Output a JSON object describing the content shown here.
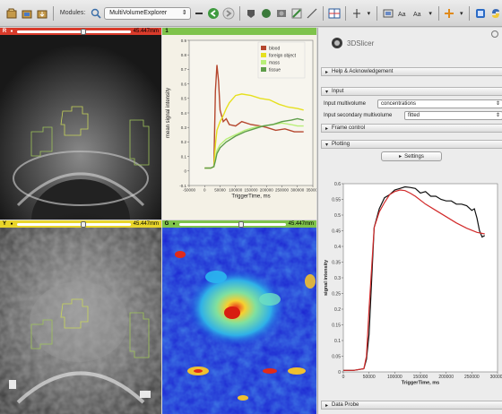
{
  "toolbar": {
    "modules_label": "Modules:",
    "module_name": "MultiVolumeExplorer"
  },
  "views": {
    "red": {
      "label": "R",
      "value": "45.447mm"
    },
    "green_chart": {
      "label": "1"
    },
    "yellow": {
      "label": "Y",
      "value": "45.447mm"
    },
    "green": {
      "label": "G",
      "value": "45.447mm"
    }
  },
  "colors": {
    "red_bar": "#d93b2b",
    "yellow_bar": "#e9d52a",
    "green_bar": "#7fc34b"
  },
  "chart1": {
    "ylabel": "mean signal intensity",
    "xlabel": "TriggerTime, ms",
    "yticks": [
      "0.9",
      "0.8",
      "0.7",
      "0.6",
      "0.5",
      "0.4",
      "0.3",
      "0.2",
      "0.1",
      "0",
      "-0.1"
    ],
    "xticks": [
      "-50000",
      "0",
      "50000",
      "100000",
      "150000",
      "200000",
      "250000",
      "300000",
      "350000"
    ],
    "legend": [
      {
        "name": "blood",
        "color": "#b5472e"
      },
      {
        "name": "foreign object",
        "color": "#e6e01f"
      },
      {
        "name": "mass",
        "color": "#b8ef78"
      },
      {
        "name": "tissue",
        "color": "#5e9d4a"
      }
    ],
    "chart_data": {
      "type": "line",
      "xlim": [
        -50000,
        350000
      ],
      "ylim": [
        -0.1,
        0.9
      ],
      "series": [
        {
          "name": "blood",
          "color": "#b5472e",
          "x": [
            0,
            20000,
            30000,
            35000,
            40000,
            45000,
            50000,
            60000,
            70000,
            80000,
            100000,
            120000,
            150000,
            180000,
            200000,
            230000,
            260000,
            290000,
            320000
          ],
          "y": [
            0.02,
            0.02,
            0.03,
            0.55,
            0.73,
            0.62,
            0.42,
            0.34,
            0.36,
            0.32,
            0.31,
            0.34,
            0.32,
            0.31,
            0.3,
            0.28,
            0.29,
            0.27,
            0.27
          ]
        },
        {
          "name": "foreign object",
          "color": "#e6e01f",
          "x": [
            0,
            20000,
            30000,
            35000,
            40000,
            50000,
            60000,
            70000,
            80000,
            100000,
            120000,
            150000,
            180000,
            210000,
            240000,
            270000,
            300000,
            320000
          ],
          "y": [
            0.02,
            0.02,
            0.03,
            0.18,
            0.28,
            0.34,
            0.38,
            0.43,
            0.47,
            0.52,
            0.53,
            0.52,
            0.5,
            0.49,
            0.46,
            0.44,
            0.43,
            0.42
          ]
        },
        {
          "name": "mass",
          "color": "#b8ef78",
          "x": [
            0,
            20000,
            30000,
            35000,
            40000,
            50000,
            70000,
            100000,
            130000,
            160000,
            190000,
            220000,
            250000,
            280000,
            300000,
            320000
          ],
          "y": [
            0.02,
            0.02,
            0.03,
            0.08,
            0.14,
            0.18,
            0.22,
            0.25,
            0.28,
            0.3,
            0.31,
            0.32,
            0.33,
            0.32,
            0.31,
            0.31
          ]
        },
        {
          "name": "tissue",
          "color": "#5e9d4a",
          "x": [
            0,
            20000,
            30000,
            35000,
            40000,
            50000,
            70000,
            100000,
            130000,
            160000,
            190000,
            220000,
            250000,
            280000,
            300000,
            320000
          ],
          "y": [
            0.02,
            0.02,
            0.03,
            0.07,
            0.12,
            0.16,
            0.2,
            0.24,
            0.27,
            0.29,
            0.31,
            0.32,
            0.34,
            0.35,
            0.36,
            0.35
          ]
        }
      ]
    }
  },
  "panel": {
    "logo_text": "3DSlicer",
    "help_section": "Help & Acknowledgement",
    "input_section": "Input",
    "input_mv_label": "Input multivolume",
    "input_mv_value": "concentrations",
    "input_secondary_label": "Input secondary multivolume",
    "input_secondary_value": "fitted",
    "frame_section": "Frame control",
    "plotting_section": "Plotting",
    "settings_button": "Settings",
    "data_probe": "Data Probe"
  },
  "chart2": {
    "ylabel": "signal intensity",
    "xlabel": "TriggerTime, ms",
    "yticks": [
      "0.6",
      "0.55",
      "0.5",
      "0.45",
      "0.4",
      "0.35",
      "0.3",
      "0.25",
      "0.2",
      "0.15",
      "0.1",
      "0.05",
      "0"
    ],
    "xticks": [
      "0",
      "50000",
      "100000",
      "150000",
      "200000",
      "250000",
      "300000"
    ],
    "chart_data": {
      "type": "line",
      "xlim": [
        0,
        300000
      ],
      "ylim": [
        0,
        0.6
      ],
      "series": [
        {
          "color": "#111111",
          "x": [
            0,
            20000,
            40000,
            45000,
            50000,
            60000,
            70000,
            80000,
            90000,
            100000,
            110000,
            120000,
            130000,
            140000,
            150000,
            160000,
            170000,
            180000,
            190000,
            200000,
            210000,
            220000,
            230000,
            240000,
            250000,
            255000,
            260000,
            265000,
            270000,
            275000
          ],
          "y": [
            0.005,
            0.005,
            0.01,
            0.04,
            0.12,
            0.46,
            0.52,
            0.555,
            0.565,
            0.58,
            0.585,
            0.59,
            0.588,
            0.585,
            0.57,
            0.575,
            0.56,
            0.56,
            0.55,
            0.545,
            0.545,
            0.535,
            0.535,
            0.53,
            0.515,
            0.52,
            0.49,
            0.45,
            0.43,
            0.435
          ]
        },
        {
          "color": "#d22a2a",
          "x": [
            0,
            20000,
            40000,
            45000,
            50000,
            60000,
            70000,
            80000,
            90000,
            100000,
            110000,
            120000,
            130000,
            140000,
            160000,
            180000,
            200000,
            220000,
            240000,
            260000,
            275000
          ],
          "y": [
            0.005,
            0.005,
            0.01,
            0.05,
            0.2,
            0.46,
            0.51,
            0.54,
            0.565,
            0.575,
            0.58,
            0.578,
            0.57,
            0.56,
            0.535,
            0.515,
            0.495,
            0.475,
            0.458,
            0.445,
            0.44
          ]
        }
      ]
    }
  }
}
